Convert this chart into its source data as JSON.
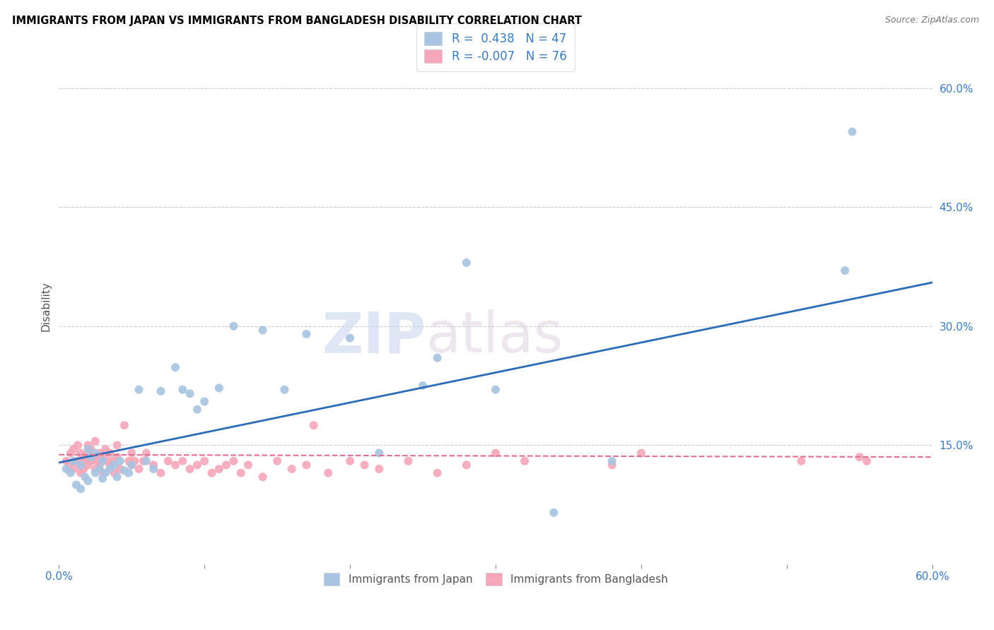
{
  "title": "IMMIGRANTS FROM JAPAN VS IMMIGRANTS FROM BANGLADESH DISABILITY CORRELATION CHART",
  "source": "Source: ZipAtlas.com",
  "ylabel": "Disability",
  "xlim": [
    0.0,
    0.6
  ],
  "ylim": [
    0.0,
    0.65
  ],
  "yticks": [
    0.15,
    0.3,
    0.45,
    0.6
  ],
  "ytick_labels": [
    "15.0%",
    "30.0%",
    "45.0%",
    "60.0%"
  ],
  "xtick_labels": [
    "0.0%",
    "",
    "",
    "",
    "",
    "",
    "60.0%"
  ],
  "xticks": [
    0.0,
    0.1,
    0.2,
    0.3,
    0.4,
    0.5,
    0.6
  ],
  "legend_r_japan": "0.438",
  "legend_n_japan": "47",
  "legend_r_bangladesh": "-0.007",
  "legend_n_bangladesh": "76",
  "japan_color": "#a8c4e0",
  "bangladesh_color": "#f4a7b9",
  "japan_line_color": "#2b6cb8",
  "bangladesh_line_color": "#e07090",
  "watermark_zip": "ZIP",
  "watermark_atlas": "atlas",
  "japan_line_x": [
    0.0,
    0.6
  ],
  "japan_line_y": [
    0.128,
    0.355
  ],
  "bangladesh_line_x": [
    0.0,
    0.6
  ],
  "bangladesh_line_y": [
    0.138,
    0.135
  ],
  "japan_scatter_x": [
    0.005,
    0.008,
    0.01,
    0.012,
    0.015,
    0.015,
    0.018,
    0.02,
    0.02,
    0.022,
    0.025,
    0.025,
    0.028,
    0.03,
    0.03,
    0.032,
    0.035,
    0.038,
    0.04,
    0.042,
    0.045,
    0.048,
    0.05,
    0.055,
    0.06,
    0.065,
    0.07,
    0.08,
    0.085,
    0.09,
    0.095,
    0.1,
    0.11,
    0.12,
    0.14,
    0.155,
    0.17,
    0.2,
    0.22,
    0.25,
    0.26,
    0.28,
    0.3,
    0.34,
    0.38,
    0.54,
    0.545
  ],
  "japan_scatter_y": [
    0.12,
    0.115,
    0.13,
    0.1,
    0.095,
    0.125,
    0.11,
    0.105,
    0.145,
    0.135,
    0.115,
    0.14,
    0.12,
    0.108,
    0.13,
    0.115,
    0.12,
    0.125,
    0.11,
    0.13,
    0.118,
    0.115,
    0.125,
    0.22,
    0.13,
    0.12,
    0.218,
    0.248,
    0.22,
    0.215,
    0.195,
    0.205,
    0.222,
    0.3,
    0.295,
    0.22,
    0.29,
    0.285,
    0.14,
    0.225,
    0.26,
    0.38,
    0.22,
    0.065,
    0.13,
    0.37,
    0.545
  ],
  "bangladesh_scatter_x": [
    0.005,
    0.007,
    0.008,
    0.01,
    0.01,
    0.012,
    0.013,
    0.014,
    0.015,
    0.015,
    0.016,
    0.017,
    0.018,
    0.02,
    0.02,
    0.02,
    0.022,
    0.022,
    0.024,
    0.025,
    0.025,
    0.026,
    0.028,
    0.028,
    0.03,
    0.03,
    0.032,
    0.033,
    0.035,
    0.035,
    0.037,
    0.038,
    0.04,
    0.04,
    0.042,
    0.045,
    0.048,
    0.05,
    0.05,
    0.052,
    0.055,
    0.058,
    0.06,
    0.065,
    0.07,
    0.075,
    0.08,
    0.085,
    0.09,
    0.095,
    0.1,
    0.105,
    0.11,
    0.115,
    0.12,
    0.125,
    0.13,
    0.14,
    0.15,
    0.16,
    0.17,
    0.175,
    0.185,
    0.2,
    0.21,
    0.22,
    0.24,
    0.26,
    0.28,
    0.3,
    0.32,
    0.38,
    0.4,
    0.51,
    0.55,
    0.555
  ],
  "bangladesh_scatter_y": [
    0.13,
    0.125,
    0.14,
    0.12,
    0.145,
    0.13,
    0.15,
    0.125,
    0.115,
    0.14,
    0.135,
    0.12,
    0.13,
    0.125,
    0.14,
    0.15,
    0.13,
    0.145,
    0.135,
    0.12,
    0.155,
    0.13,
    0.14,
    0.125,
    0.135,
    0.115,
    0.145,
    0.13,
    0.125,
    0.14,
    0.13,
    0.115,
    0.135,
    0.15,
    0.12,
    0.175,
    0.13,
    0.125,
    0.14,
    0.13,
    0.12,
    0.13,
    0.14,
    0.125,
    0.115,
    0.13,
    0.125,
    0.13,
    0.12,
    0.125,
    0.13,
    0.115,
    0.12,
    0.125,
    0.13,
    0.115,
    0.125,
    0.11,
    0.13,
    0.12,
    0.125,
    0.175,
    0.115,
    0.13,
    0.125,
    0.12,
    0.13,
    0.115,
    0.125,
    0.14,
    0.13,
    0.125,
    0.14,
    0.13,
    0.135,
    0.13
  ]
}
